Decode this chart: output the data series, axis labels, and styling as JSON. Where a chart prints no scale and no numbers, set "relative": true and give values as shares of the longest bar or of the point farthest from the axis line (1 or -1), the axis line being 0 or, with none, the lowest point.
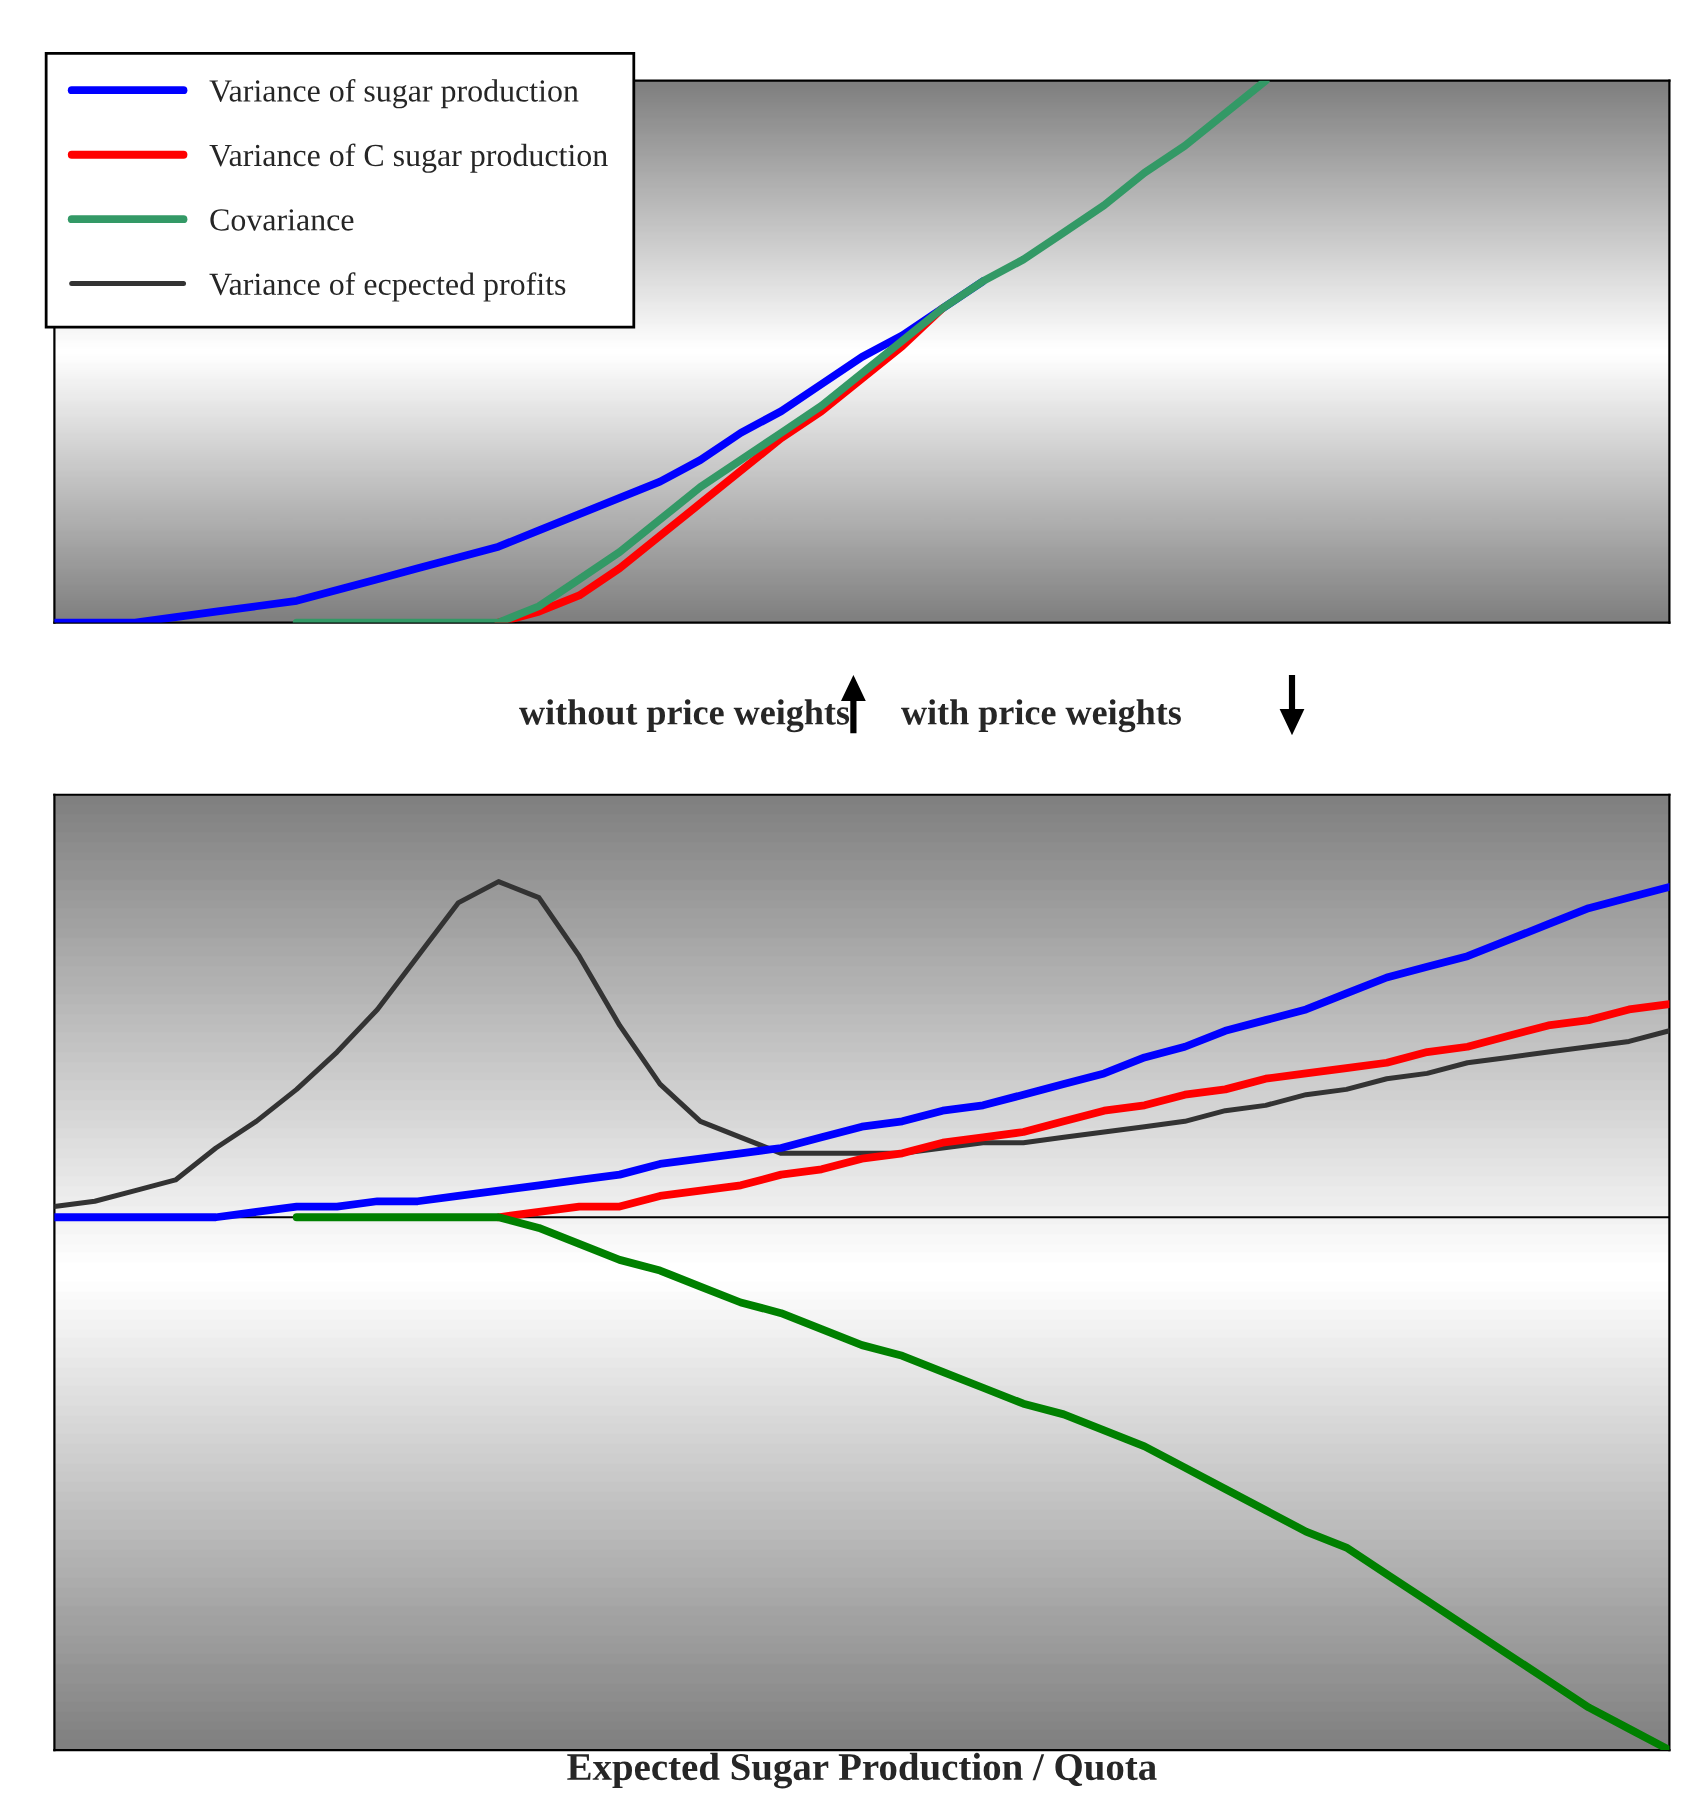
{
  "chart_data": [
    {
      "type": "line",
      "relative": true,
      "tick_labels": false,
      "legend": "top left",
      "categories": [
        null,
        null,
        null,
        null,
        null,
        null,
        null,
        null,
        null,
        null,
        null,
        null,
        null,
        null,
        null,
        null,
        null,
        null,
        null,
        null,
        null,
        null,
        null,
        null,
        null,
        null,
        null,
        null,
        null,
        null,
        null,
        null,
        null,
        null,
        null,
        null,
        null,
        null,
        null,
        null,
        null
      ],
      "series": [
        {
          "name": "Variance of sugar production",
          "color": "#0000ff",
          "values": [
            0,
            0,
            0,
            0.01,
            0.02,
            0.03,
            0.04,
            0.06,
            0.08,
            0.1,
            0.12,
            0.14,
            0.17,
            0.2,
            0.23,
            0.26,
            0.3,
            0.35,
            0.39,
            0.44,
            0.49,
            0.53,
            0.58,
            0.63,
            null,
            null,
            null,
            null,
            null,
            null,
            null,
            null,
            null,
            null,
            null,
            null,
            null,
            null,
            null,
            null,
            null
          ]
        },
        {
          "name": "Variance of C sugar production",
          "color": "#ff0000",
          "values": [
            null,
            null,
            null,
            null,
            null,
            null,
            null,
            null,
            null,
            null,
            null,
            0,
            0.02,
            0.05,
            0.1,
            0.16,
            0.22,
            0.28,
            0.34,
            0.39,
            0.45,
            0.51,
            0.58,
            null,
            null,
            null,
            null,
            null,
            null,
            null,
            null,
            null,
            null,
            null,
            null,
            null,
            null,
            null,
            null,
            null,
            null
          ]
        },
        {
          "name": "Covariance",
          "color": "#339966",
          "values": [
            null,
            null,
            null,
            null,
            null,
            null,
            0,
            0,
            0,
            0,
            0,
            0,
            0.03,
            0.08,
            0.13,
            0.19,
            0.25,
            0.3,
            0.35,
            0.4,
            0.46,
            0.52,
            0.58,
            0.63,
            0.67,
            0.72,
            0.77,
            0.83,
            0.88,
            0.94,
            1,
            null,
            null,
            null,
            null,
            null,
            null,
            null,
            null,
            null,
            null
          ]
        },
        {
          "name": "Variance of ecpected profits",
          "color": "#333333",
          "values": [
            null,
            null,
            null,
            null,
            null,
            null,
            null,
            null,
            null,
            null,
            null,
            null,
            null,
            null,
            null,
            null,
            null,
            null,
            null,
            null,
            null,
            null,
            null,
            null,
            null,
            null,
            null,
            null,
            null,
            null,
            null,
            null,
            null,
            null,
            null,
            null,
            null,
            null,
            null,
            null,
            null
          ]
        }
      ],
      "annotations": [
        "without price weights",
        "with price weights"
      ]
    },
    {
      "type": "line",
      "relative": true,
      "tick_labels": false,
      "xlabel": "Expected Sugar Production / Quota",
      "categories": [
        null,
        null,
        null,
        null,
        null,
        null,
        null,
        null,
        null,
        null,
        null,
        null,
        null,
        null,
        null,
        null,
        null,
        null,
        null,
        null,
        null,
        null,
        null,
        null,
        null,
        null,
        null,
        null,
        null,
        null,
        null,
        null,
        null,
        null,
        null,
        null,
        null,
        null,
        null,
        null,
        null
      ],
      "series": [
        {
          "color": "#333333",
          "values": [
            0.02,
            0.03,
            0.05,
            0.07,
            0.13,
            0.18,
            0.24,
            0.31,
            0.39,
            0.49,
            0.59,
            0.63,
            0.6,
            0.49,
            0.36,
            0.25,
            0.18,
            0.15,
            0.12,
            0.12,
            0.12,
            0.12,
            0.13,
            0.14,
            0.14,
            0.15,
            0.16,
            0.17,
            0.18,
            0.2,
            0.21,
            0.23,
            0.24,
            0.26,
            0.27,
            0.29,
            0.3,
            0.31,
            0.32,
            0.33,
            0.35
          ]
        },
        {
          "color": "#0000ff",
          "values": [
            0,
            0,
            0,
            0,
            0,
            0.01,
            0.02,
            0.02,
            0.03,
            0.03,
            0.04,
            0.05,
            0.06,
            0.07,
            0.08,
            0.1,
            0.11,
            0.12,
            0.13,
            0.15,
            0.17,
            0.18,
            0.2,
            0.21,
            0.23,
            0.25,
            0.27,
            0.3,
            0.32,
            0.35,
            0.37,
            0.39,
            0.42,
            0.45,
            0.47,
            0.49,
            0.52,
            0.55,
            0.58,
            0.6,
            0.62
          ]
        },
        {
          "color": "#ff0000",
          "values": [
            null,
            null,
            null,
            null,
            null,
            null,
            null,
            null,
            null,
            null,
            null,
            0,
            0.01,
            0.02,
            0.02,
            0.04,
            0.05,
            0.06,
            0.08,
            0.09,
            0.11,
            0.12,
            0.14,
            0.15,
            0.16,
            0.18,
            0.2,
            0.21,
            0.23,
            0.24,
            0.26,
            0.27,
            0.28,
            0.29,
            0.31,
            0.32,
            0.34,
            0.36,
            0.37,
            0.39,
            0.4
          ]
        },
        {
          "color": "#008000",
          "values": [
            null,
            null,
            null,
            null,
            null,
            null,
            0,
            0,
            0,
            0,
            0,
            0,
            -0.02,
            -0.05,
            -0.08,
            -0.1,
            -0.13,
            -0.16,
            -0.18,
            -0.21,
            -0.24,
            -0.26,
            -0.29,
            -0.32,
            -0.35,
            -0.37,
            -0.4,
            -0.43,
            -0.47,
            -0.51,
            -0.55,
            -0.59,
            -0.62,
            -0.67,
            -0.72,
            -0.77,
            -0.82,
            -0.87,
            -0.92,
            -0.96,
            -1
          ]
        }
      ]
    }
  ]
}
